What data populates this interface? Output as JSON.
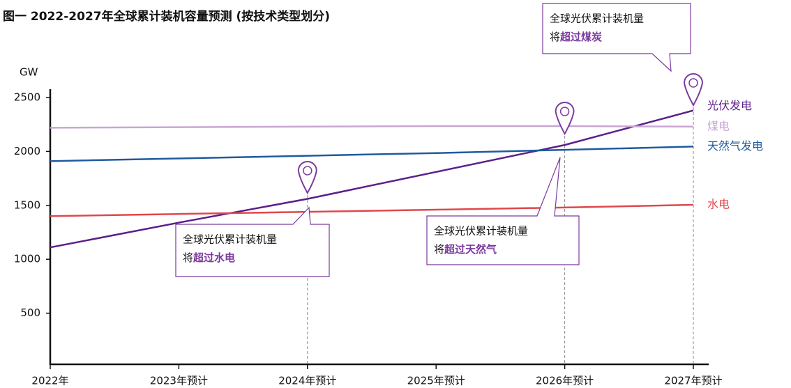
{
  "chart_data": {
    "type": "line",
    "title": "图一 2022-2027年全球累计装机容量预测 (按技术类型划分)",
    "y_label": "GW",
    "categories": [
      "2022年",
      "2023年预计",
      "2024年预计",
      "2025年预计",
      "2026年预计",
      "2027年预计"
    ],
    "ylim": [
      0,
      2500
    ],
    "yticks": [
      500,
      1000,
      1500,
      2000,
      2500
    ],
    "series": [
      {
        "name": "光伏发电",
        "color": "#5b1f8a",
        "values": [
          1110,
          1340,
          1560,
          1810,
          2060,
          2380
        ]
      },
      {
        "name": "煤电",
        "color": "#c9a6d4",
        "values": [
          2220,
          2225,
          2230,
          2235,
          2235,
          2230
        ]
      },
      {
        "name": "天然气发电",
        "color": "#1f5aa0",
        "values": [
          1910,
          1935,
          1960,
          1985,
          2015,
          2045
        ]
      },
      {
        "name": "水电",
        "color": "#e0474c",
        "values": [
          1400,
          1420,
          1440,
          1460,
          1480,
          1505
        ]
      }
    ],
    "annotations": [
      {
        "category": 2,
        "line1": "全球光伏累计装机量",
        "prefix": "将",
        "highlight": "超过水电"
      },
      {
        "category": 4,
        "line1": "全球光伏累计装机量",
        "prefix": "将",
        "highlight": "超过天然气"
      },
      {
        "category": 5,
        "line1": "全球光伏累计装机量",
        "prefix": "将",
        "highlight": "超过煤炭"
      }
    ]
  }
}
